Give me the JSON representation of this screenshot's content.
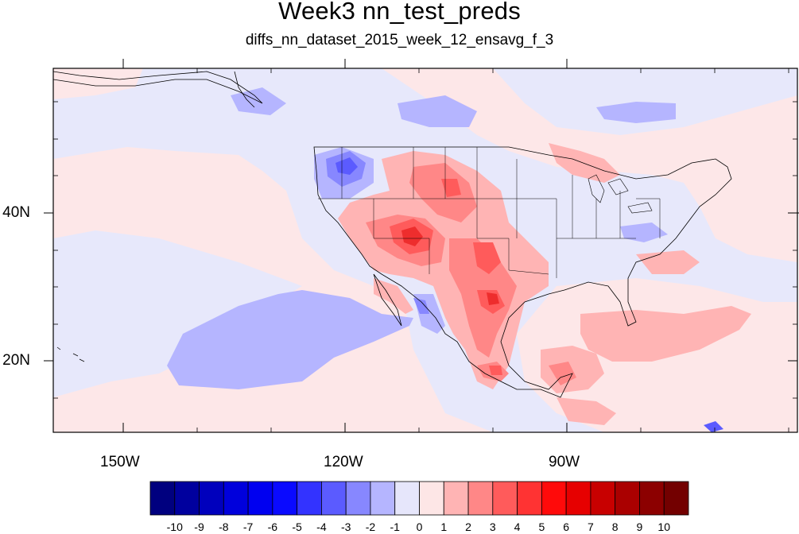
{
  "title": "Week3 nn_test_preds",
  "subtitle": "diffs_nn_dataset_2015_week_12_ensavg_f_3",
  "axes": {
    "lon_labels": [
      "150W",
      "120W",
      "90W"
    ],
    "lat_labels": [
      "40N",
      "20N"
    ]
  },
  "colorbar": {
    "labels": [
      "-10",
      "-9",
      "-8",
      "-7",
      "-6",
      "-5",
      "-4",
      "-3",
      "-2",
      "-1",
      "0",
      "1",
      "2",
      "3",
      "4",
      "5",
      "6",
      "7",
      "8",
      "9",
      "10"
    ],
    "colors": [
      "#00007f",
      "#00009e",
      "#0000bd",
      "#0000dc",
      "#0000f0",
      "#0a0aff",
      "#3333ff",
      "#5b5bff",
      "#8787ff",
      "#b5b5ff",
      "#e6e6fb",
      "#fde6e6",
      "#ffb4b4",
      "#ff8787",
      "#ff5b5b",
      "#ff3333",
      "#ff0a0a",
      "#e60000",
      "#c80000",
      "#aa0000",
      "#8c0000",
      "#730000"
    ]
  },
  "map": {
    "background_color": "#e7e8fb",
    "positive_light": "#fde7e8",
    "positive_medium": "#ffb4b4",
    "positive_strong": "#ff7b7b",
    "positive_peak": "#ee2d2d",
    "negative_medium": "#b5b5ff",
    "negative_strong": "#8787ff",
    "negative_peak": "#2a2aff"
  }
}
